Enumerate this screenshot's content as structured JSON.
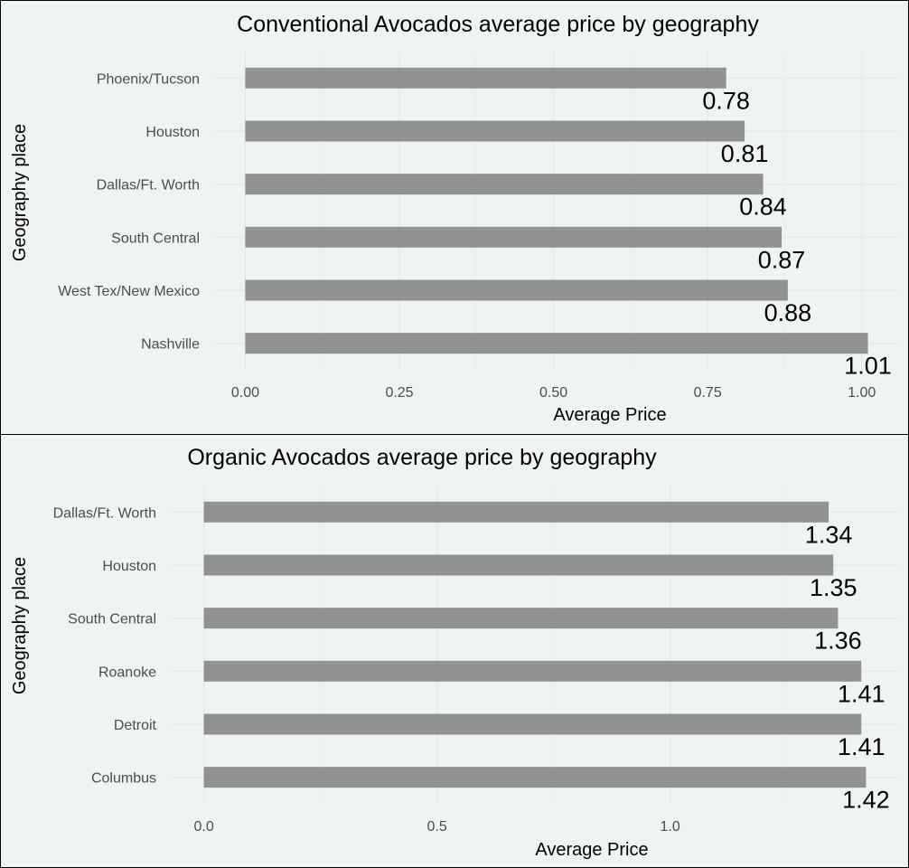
{
  "chart_data": [
    {
      "type": "bar",
      "orientation": "horizontal",
      "title": "Conventional Avocados average price by geography",
      "xlabel": "Average Price",
      "ylabel": "Geography place",
      "categories": [
        "Phoenix/Tucson",
        "Houston",
        "Dallas/Ft. Worth",
        "South Central",
        "West Tex/New Mexico",
        "Nashville"
      ],
      "values": [
        0.78,
        0.81,
        0.84,
        0.87,
        0.88,
        1.01
      ],
      "value_labels": [
        "0.78",
        "0.81",
        "0.84",
        "0.87",
        "0.88",
        "1.01"
      ],
      "xlim": [
        0,
        1.01
      ],
      "xticks": [
        0,
        0.25,
        0.5,
        0.75,
        1.0
      ],
      "xtick_labels": [
        "0.00",
        "0.25",
        "0.50",
        "0.75",
        "1.00"
      ],
      "grid": true,
      "legend": "none"
    },
    {
      "type": "bar",
      "orientation": "horizontal",
      "title": "Organic Avocados average price by geography",
      "xlabel": "Average Price",
      "ylabel": "Geography place",
      "categories": [
        "Dallas/Ft. Worth",
        "Houston",
        "South Central",
        "Roanoke",
        "Detroit",
        "Columbus"
      ],
      "values": [
        1.34,
        1.35,
        1.36,
        1.41,
        1.41,
        1.42
      ],
      "value_labels": [
        "1.34",
        "1.35",
        "1.36",
        "1.41",
        "1.41",
        "1.42"
      ],
      "xlim": [
        0,
        1.42
      ],
      "xticks": [
        0,
        0.5,
        1.0
      ],
      "xtick_labels": [
        "0.0",
        "0.5",
        "1.0"
      ],
      "grid": true,
      "legend": "none"
    }
  ]
}
